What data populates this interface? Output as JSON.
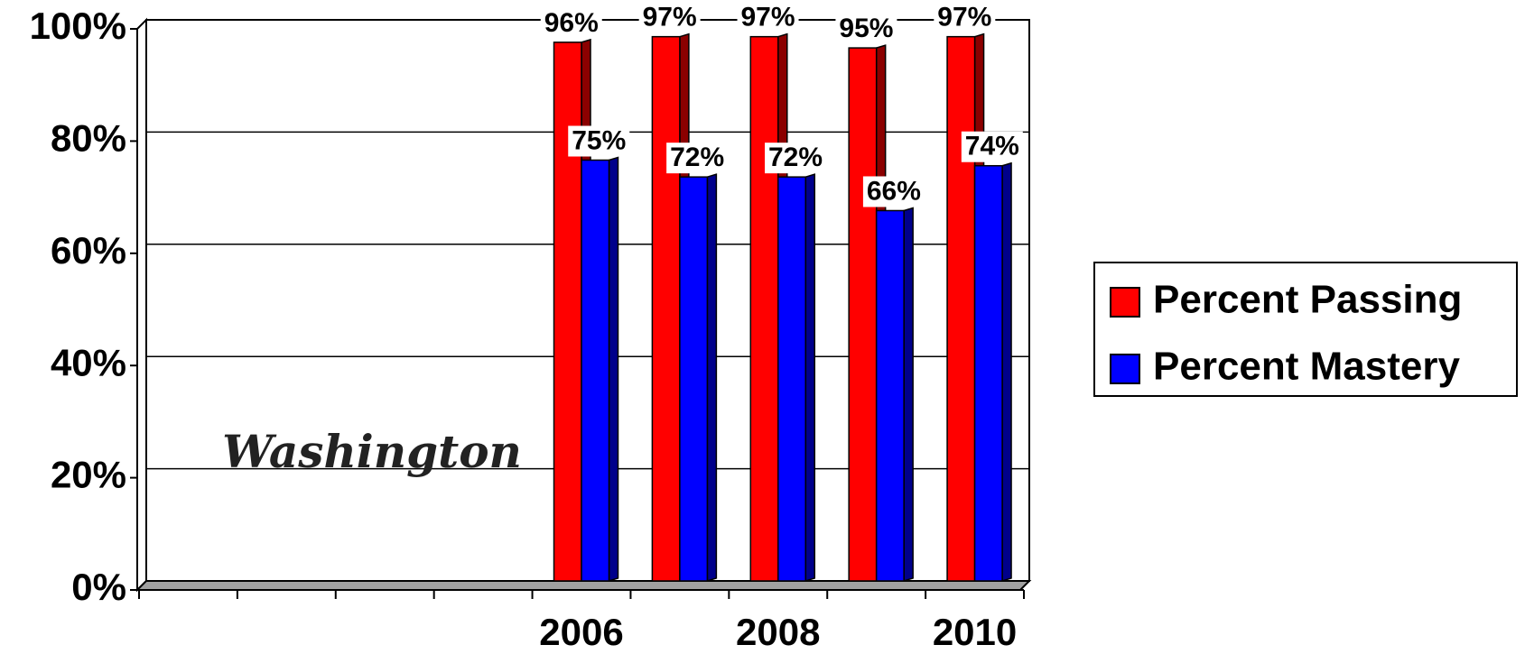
{
  "chart_data": {
    "type": "bar",
    "annotations": [
      "Washington"
    ],
    "categories": [
      null,
      null,
      null,
      null,
      "2006",
      null,
      "2008",
      null,
      "2010"
    ],
    "series": [
      {
        "name": "Percent Passing",
        "color": "#ff0000",
        "side_color": "#8b0000",
        "values": [
          null,
          null,
          null,
          null,
          96,
          97,
          97,
          95,
          97
        ],
        "value_labels": [
          null,
          null,
          null,
          null,
          "96%",
          "97%",
          "97%",
          "95%",
          "97%"
        ]
      },
      {
        "name": "Percent Mastery",
        "color": "#0000ff",
        "side_color": "#00008b",
        "values": [
          null,
          null,
          null,
          null,
          75,
          72,
          72,
          66,
          74
        ],
        "value_labels": [
          null,
          null,
          null,
          null,
          "75%",
          "72%",
          "72%",
          "66%",
          "74%"
        ]
      }
    ],
    "ylim": [
      0,
      100
    ],
    "yticks": [
      {
        "value": 0,
        "label": "0%"
      },
      {
        "value": 20,
        "label": "20%"
      },
      {
        "value": 40,
        "label": "40%"
      },
      {
        "value": 60,
        "label": "60%"
      },
      {
        "value": 80,
        "label": "80%"
      },
      {
        "value": 100,
        "label": "100%"
      }
    ],
    "grid": true,
    "legend": "right"
  }
}
